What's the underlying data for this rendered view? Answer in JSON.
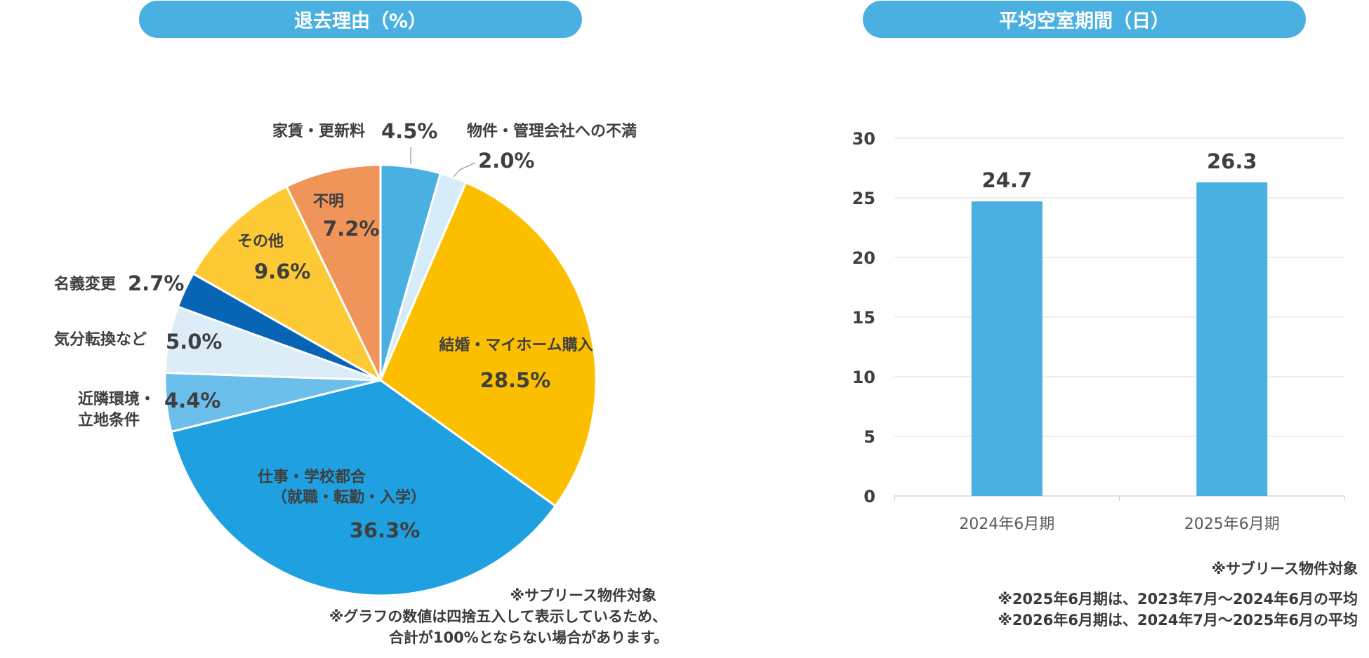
{
  "left_title": "退去理由（%）",
  "right_title": "平均空室期間（日）",
  "chart_data": [
    {
      "type": "pie",
      "title": "退去理由（%）",
      "slices": [
        {
          "label": "家賃・更新料",
          "value": 4.5,
          "value_label": "4.5%",
          "color": "#4ab0e2"
        },
        {
          "label": "物件・管理会社への不満",
          "value": 2.0,
          "value_label": "2.0%",
          "color": "#d6ecf8"
        },
        {
          "label": "結婚・マイホーム購入",
          "value": 28.5,
          "value_label": "28.5%",
          "color": "#fcbf00"
        },
        {
          "label": "仕事・学校都合（就職・転勤・入学）",
          "label_line1": "仕事・学校都合",
          "label_line2": "（就職・転勤・入学）",
          "value": 36.3,
          "value_label": "36.3%",
          "color": "#1fa0e0"
        },
        {
          "label": "近隣環境・立地条件",
          "label_line1": "近隣環境・",
          "label_line2": "立地条件",
          "value": 4.4,
          "value_label": "4.4%",
          "color": "#6bbfea"
        },
        {
          "label": "気分転換など",
          "value": 5.0,
          "value_label": "5.0%",
          "color": "#dcedf8"
        },
        {
          "label": "名義変更",
          "value": 2.7,
          "value_label": "2.7%",
          "color": "#0864b4"
        },
        {
          "label": "その他",
          "value": 9.6,
          "value_label": "9.6%",
          "color": "#fdca35"
        },
        {
          "label": "不明",
          "value": 7.2,
          "value_label": "7.2%",
          "color": "#f0955a"
        }
      ]
    },
    {
      "type": "bar",
      "title": "平均空室期間（日）",
      "categories": [
        "2024年6月期",
        "2025年6月期"
      ],
      "values": [
        24.7,
        26.3
      ],
      "value_labels": [
        "24.7",
        "26.3"
      ],
      "ylim": [
        0,
        30
      ],
      "yticks": [
        "0",
        "5",
        "10",
        "15",
        "20",
        "25",
        "30"
      ],
      "bar_color": "#4ab0e2",
      "grid": true
    }
  ],
  "notes_left": {
    "line1": "※サブリース物件対象",
    "line2": "※グラフの数値は四捨五入して表示しているため、",
    "line3": "合計が100%とならない場合があります。"
  },
  "notes_right": {
    "line1": "※サブリース物件対象",
    "line2": "※2025年6月期は、2023年7月～2024年6月の平均",
    "line3": "※2026年6月期は、2024年7月～2025年6月の平均"
  }
}
